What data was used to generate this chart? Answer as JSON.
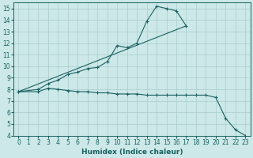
{
  "xlabel": "Humidex (Indice chaleur)",
  "bg_color": "#cce8e8",
  "grid_color": "#aacccc",
  "line_color": "#1a6060",
  "xlim": [
    -0.5,
    23.5
  ],
  "ylim": [
    4,
    15.5
  ],
  "xticks": [
    0,
    1,
    2,
    3,
    4,
    5,
    6,
    7,
    8,
    9,
    10,
    11,
    12,
    13,
    14,
    15,
    16,
    17,
    18,
    19,
    20,
    21,
    22,
    23
  ],
  "yticks": [
    4,
    5,
    6,
    7,
    8,
    9,
    10,
    11,
    12,
    13,
    14,
    15
  ],
  "line1_x": [
    0,
    2,
    3,
    4,
    5,
    6,
    7,
    8,
    9,
    10,
    11,
    12,
    13,
    14,
    15,
    16,
    17
  ],
  "line1_y": [
    7.8,
    8.0,
    8.5,
    8.8,
    9.3,
    9.5,
    9.8,
    9.9,
    10.4,
    11.8,
    11.6,
    12.0,
    13.9,
    15.2,
    15.0,
    14.8,
    13.5
  ],
  "line2_x": [
    0,
    17
  ],
  "line2_y": [
    7.8,
    13.5
  ],
  "line3_x": [
    0,
    2,
    3,
    4,
    5,
    6,
    7,
    8,
    9,
    10,
    11,
    12,
    13,
    14,
    15,
    16,
    17,
    18,
    19,
    20,
    21,
    22,
    23
  ],
  "line3_y": [
    7.8,
    7.8,
    8.1,
    8.0,
    7.9,
    7.8,
    7.8,
    7.7,
    7.7,
    7.6,
    7.6,
    7.6,
    7.5,
    7.5,
    7.5,
    7.5,
    7.5,
    7.5,
    7.5,
    7.3,
    5.5,
    4.5,
    4.0
  ]
}
